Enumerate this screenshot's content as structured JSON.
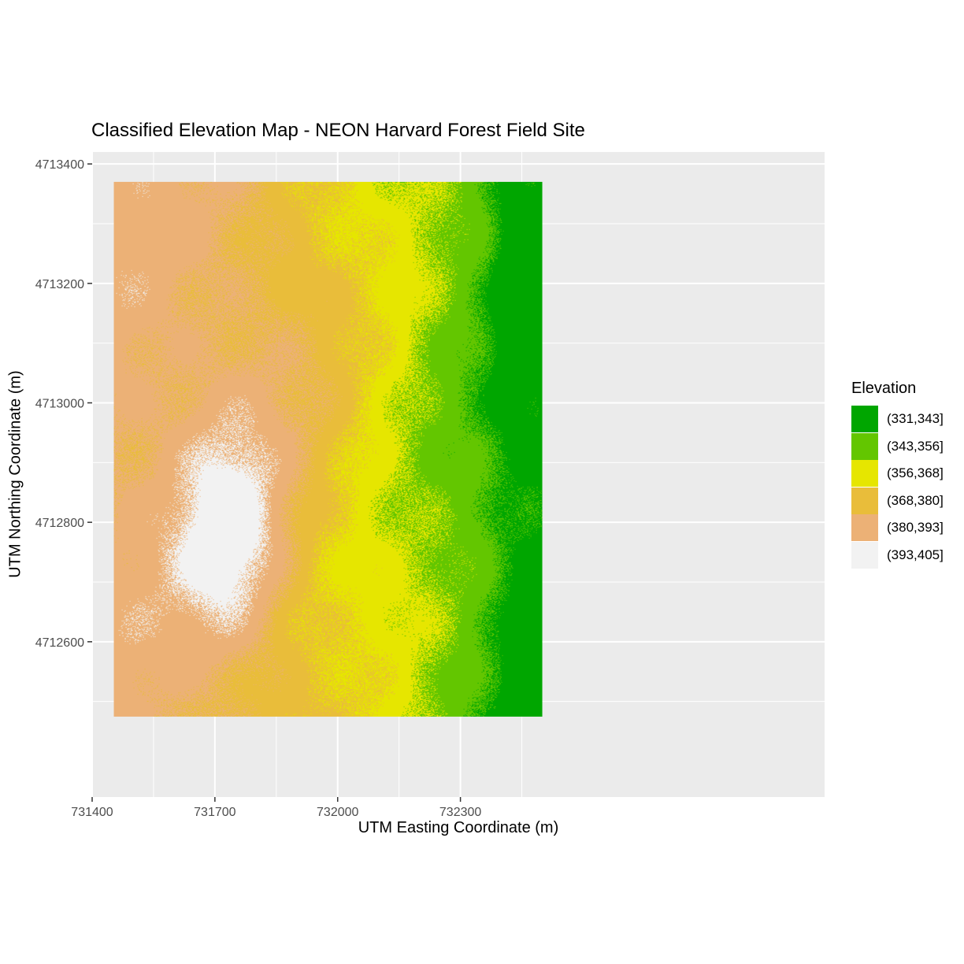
{
  "title": "Classified Elevation Map - NEON Harvard Forest Field Site",
  "chart_data": {
    "type": "heatmap",
    "title": "Classified Elevation Map - NEON Harvard Forest Field Site",
    "xlabel": "UTM Easting Coordinate (m)",
    "ylabel": "UTM Northing Coordinate (m)",
    "xlim": [
      731400,
      733190
    ],
    "ylim": [
      4712340,
      4713420
    ],
    "data_extent": {
      "x": [
        731453,
        732500
      ],
      "y": [
        4712475,
        4713370
      ]
    },
    "x_ticks": [
      731400,
      731700,
      732000,
      732300
    ],
    "y_ticks": [
      4712600,
      4712800,
      4713000,
      4713200,
      4713400
    ],
    "x_tick_labels": [
      "731400",
      "731700",
      "732000",
      "732300"
    ],
    "y_tick_labels": [
      "4712600",
      "4712800",
      "4713000",
      "4713200",
      "4713400"
    ],
    "grid": true,
    "legend_position": "right",
    "legend": {
      "title": "Elevation",
      "classes": [
        {
          "label": "(331,343]",
          "color": "#00A600"
        },
        {
          "label": "(343,356]",
          "color": "#63C600"
        },
        {
          "label": "(356,368]",
          "color": "#E6E600"
        },
        {
          "label": "(368,380]",
          "color": "#E9BD3A"
        },
        {
          "label": "(380,393]",
          "color": "#ECB176"
        },
        {
          "label": "(393,405]",
          "color": "#F2F2F2"
        }
      ]
    }
  }
}
